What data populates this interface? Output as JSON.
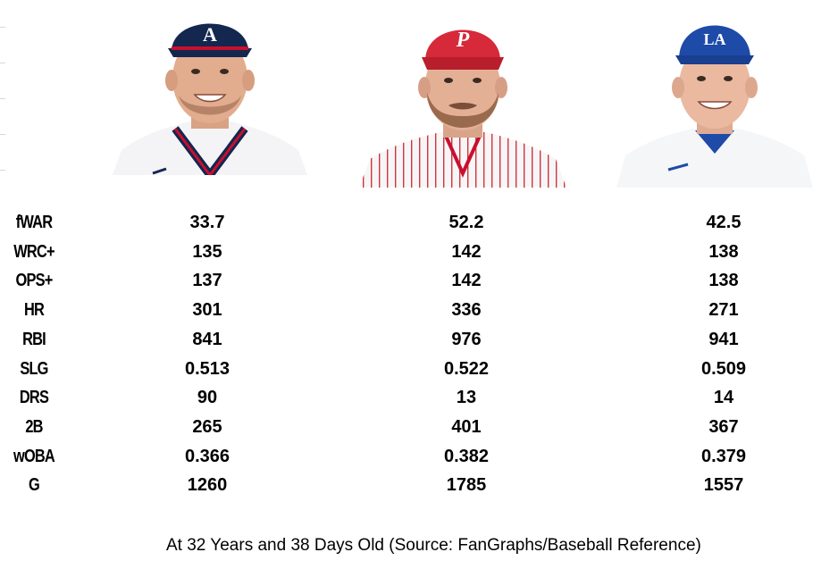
{
  "chart_data": {
    "type": "table",
    "players": [
      {
        "team_logo": "A",
        "cap_color": "#13274f",
        "logo_color": "#ffffff"
      },
      {
        "team_logo": "P",
        "cap_color": "#d6293a",
        "logo_color": "#ffffff"
      },
      {
        "team_logo": "LA",
        "cap_color": "#1e4aa8",
        "logo_color": "#ffffff"
      }
    ],
    "stats": [
      {
        "label": "fWAR",
        "values": [
          "33.7",
          "52.2",
          "42.5"
        ]
      },
      {
        "label": "WRC+",
        "values": [
          "135",
          "142",
          "138"
        ]
      },
      {
        "label": "OPS+",
        "values": [
          "137",
          "142",
          "138"
        ]
      },
      {
        "label": "HR",
        "values": [
          "301",
          "336",
          "271"
        ]
      },
      {
        "label": "RBI",
        "values": [
          "841",
          "976",
          "941"
        ]
      },
      {
        "label": "SLG",
        "values": [
          "0.513",
          "0.522",
          "0.509"
        ]
      },
      {
        "label": "DRS",
        "values": [
          "90",
          "13",
          "14"
        ]
      },
      {
        "label": "2B",
        "values": [
          "265",
          "401",
          "367"
        ]
      },
      {
        "label": "wOBA",
        "values": [
          "0.366",
          "0.382",
          "0.379"
        ]
      },
      {
        "label": "G",
        "values": [
          "1260",
          "1785",
          "1557"
        ]
      }
    ],
    "source": "At 32 Years and 38 Days Old (Source: FanGraphs/Baseball Reference)"
  }
}
